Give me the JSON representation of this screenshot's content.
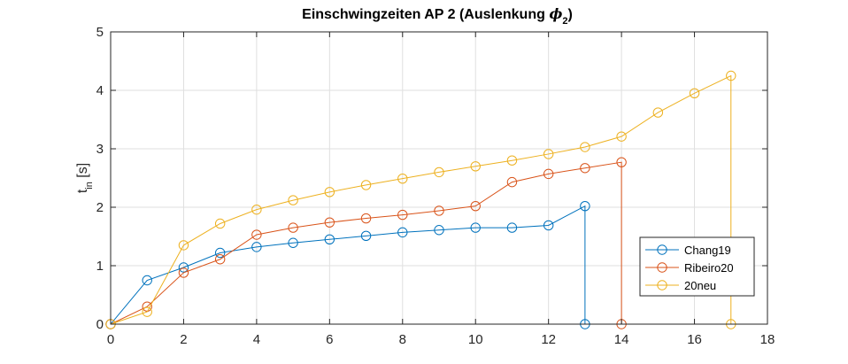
{
  "chart_data": {
    "type": "line",
    "title": "Einschwingzeiten AP 2 (Auslenkung ϕ2)",
    "title_main": "Einschwingzeiten AP 2 (Auslenkung ",
    "title_symbol": "ϕ",
    "title_subscript": "2",
    "title_close": ")",
    "xlabel": "",
    "ylabel": "t",
    "ylabel_subscript": "in",
    "ylabel_unit": " [s]",
    "xlim": [
      0,
      18
    ],
    "ylim": [
      0,
      5
    ],
    "xticks": [
      0,
      2,
      4,
      6,
      8,
      10,
      12,
      14,
      16,
      18
    ],
    "yticks": [
      0,
      1,
      2,
      3,
      4,
      5
    ],
    "grid": true,
    "legend_position": "lower-right",
    "marker": "open-circle",
    "series": [
      {
        "name": "Chang19",
        "color": "#0072BD",
        "x": [
          0,
          1,
          2,
          3,
          4,
          5,
          6,
          7,
          8,
          9,
          10,
          11,
          12,
          13,
          13
        ],
        "y": [
          0,
          0.75,
          0.97,
          1.22,
          1.32,
          1.39,
          1.45,
          1.51,
          1.57,
          1.61,
          1.65,
          1.65,
          1.69,
          2.02,
          0
        ]
      },
      {
        "name": "Ribeiro20",
        "color": "#D95319",
        "x": [
          0,
          1,
          2,
          3,
          4,
          5,
          6,
          7,
          8,
          9,
          10,
          11,
          12,
          13,
          14,
          14
        ],
        "y": [
          0,
          0.3,
          0.88,
          1.11,
          1.53,
          1.65,
          1.74,
          1.81,
          1.87,
          1.94,
          2.02,
          2.43,
          2.57,
          2.67,
          2.77,
          0
        ]
      },
      {
        "name": "20neu",
        "color": "#EDB120",
        "x": [
          0,
          1,
          2,
          3,
          4,
          5,
          6,
          7,
          8,
          9,
          10,
          11,
          12,
          13,
          14,
          15,
          16,
          17,
          17
        ],
        "y": [
          0,
          0.21,
          1.35,
          1.72,
          1.96,
          2.12,
          2.26,
          2.38,
          2.49,
          2.6,
          2.7,
          2.8,
          2.91,
          3.03,
          3.21,
          3.62,
          3.95,
          4.25,
          0
        ]
      }
    ]
  }
}
